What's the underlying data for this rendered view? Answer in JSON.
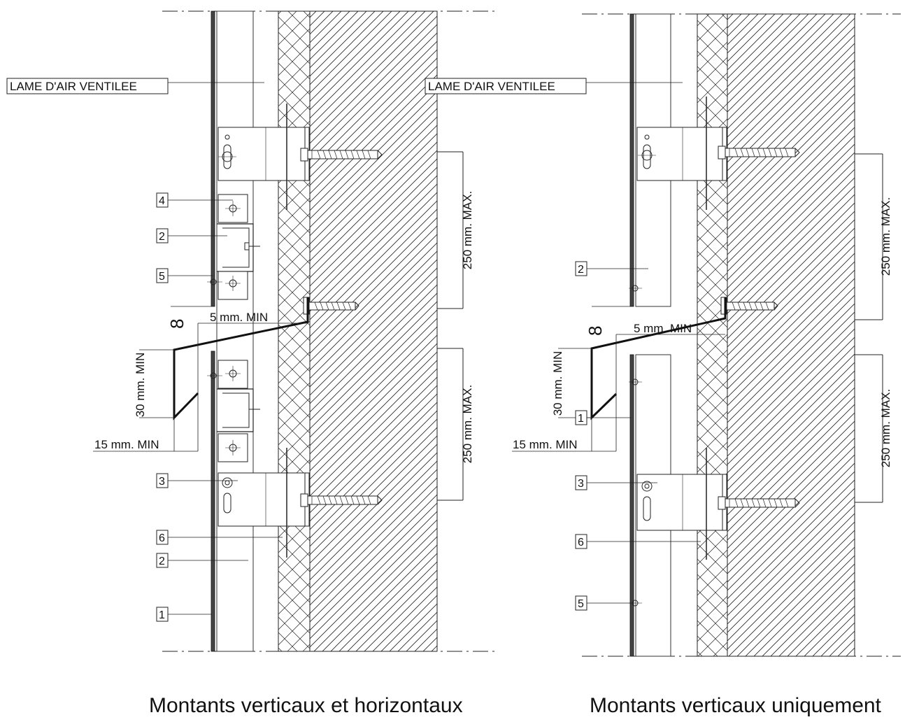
{
  "left": {
    "air_gap_label": "LAME D'AIR VENTILEE",
    "callouts": [
      "4",
      "2",
      "5",
      "3",
      "6",
      "2",
      "1"
    ],
    "dim_upper": "250 mm. MAX.",
    "dim_lower": "250 mm. MAX.",
    "dim_5mm": "5 mm. MIN",
    "dim_30mm": "30 mm. MIN",
    "dim_15mm": "15 mm. MIN",
    "angle_symbol": "8",
    "caption": "Montants verticaux et horizontaux"
  },
  "right": {
    "air_gap_label": "LAME D'AIR VENTILEE",
    "callouts": [
      "2",
      "1",
      "3",
      "6",
      "5"
    ],
    "dim_upper": "250 mm. MAX.",
    "dim_lower": "250 mm. MAX.",
    "dim_5mm": "5 mm. MIN",
    "dim_30mm": "30 mm. MIN",
    "dim_15mm": "15 mm. MIN",
    "angle_symbol": "8",
    "caption": "Montants verticaux uniquement"
  }
}
